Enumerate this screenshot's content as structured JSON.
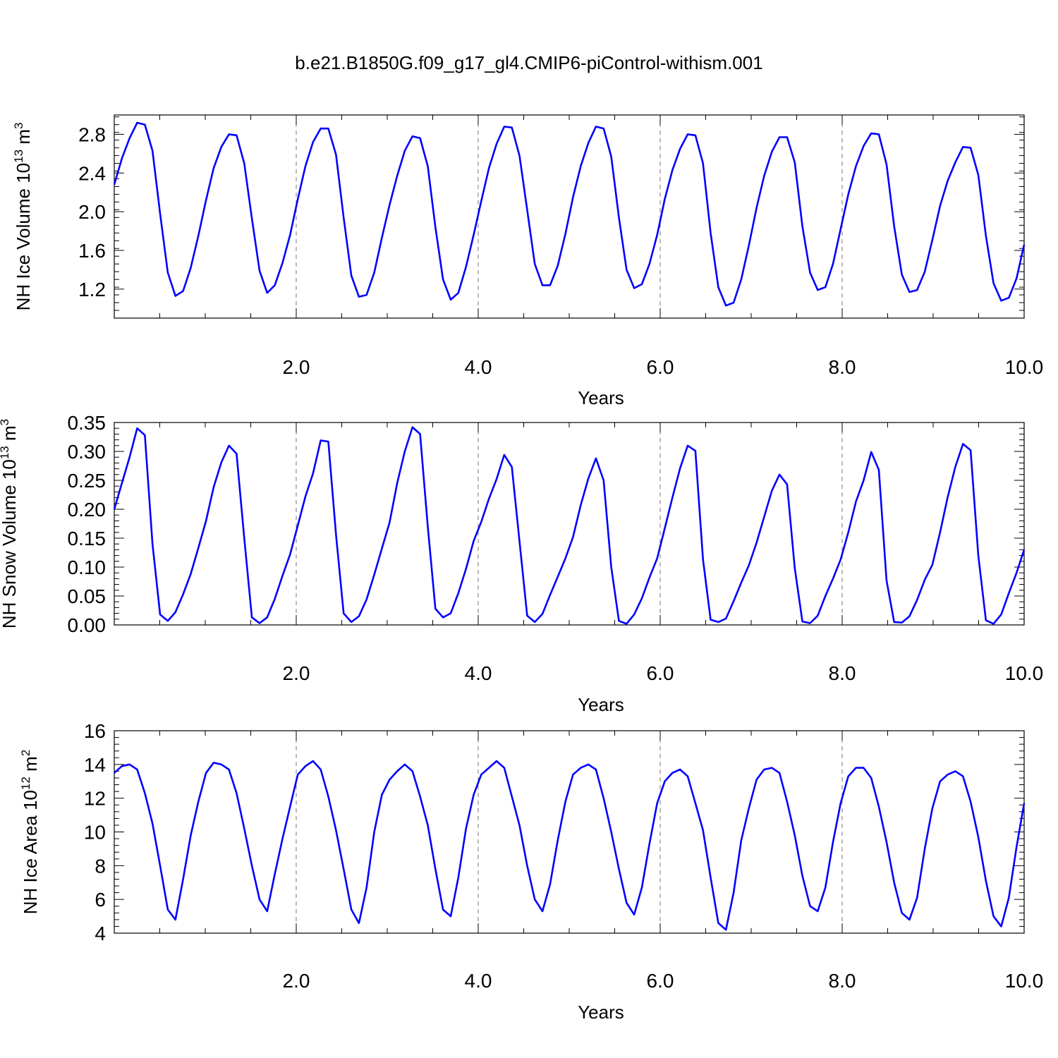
{
  "title": "b.e21.B1850G.f09_g17_gl4.CMIP6-piControl-withism.001",
  "colors": {
    "series": "#0000ff",
    "grid": "#777777",
    "frame": "#000000"
  },
  "chart_data": [
    {
      "type": "line",
      "xlabel": "Years",
      "ylabel": "NH Ice Volume 10",
      "ylabel_exp": "13",
      "ylabel_unit": " m",
      "ylabel_unit_exp": "3",
      "xlim": [
        0.0,
        10.0
      ],
      "ylim": [
        0.9,
        3.0
      ],
      "x_ticks": [
        "2.0",
        "4.0",
        "6.0",
        "8.0",
        "10.0"
      ],
      "y_ticks": [
        "1.2",
        "1.6",
        "2.0",
        "2.4",
        "2.8"
      ],
      "grid": "dashed vertical at x ticks",
      "series": [
        {
          "values": [
            2.28,
            2.55,
            2.76,
            2.92,
            2.9,
            2.63,
            1.98,
            1.37,
            1.13,
            1.18,
            1.42,
            1.75,
            2.12,
            2.45,
            2.67,
            2.8,
            2.79,
            2.5,
            1.93,
            1.39,
            1.16,
            1.24,
            1.47,
            1.76,
            2.13,
            2.47,
            2.72,
            2.86,
            2.86,
            2.59,
            1.94,
            1.34,
            1.12,
            1.14,
            1.37,
            1.73,
            2.07,
            2.37,
            2.63,
            2.78,
            2.76,
            2.47,
            1.84,
            1.3,
            1.09,
            1.16,
            1.43,
            1.76,
            2.11,
            2.45,
            2.7,
            2.88,
            2.87,
            2.58,
            2.02,
            1.46,
            1.24,
            1.24,
            1.44,
            1.77,
            2.15,
            2.47,
            2.71,
            2.88,
            2.86,
            2.57,
            1.94,
            1.4,
            1.21,
            1.25,
            1.46,
            1.76,
            2.13,
            2.43,
            2.65,
            2.8,
            2.79,
            2.5,
            1.78,
            1.22,
            1.03,
            1.06,
            1.3,
            1.65,
            2.04,
            2.37,
            2.62,
            2.77,
            2.77,
            2.51,
            1.85,
            1.37,
            1.19,
            1.22,
            1.46,
            1.82,
            2.18,
            2.47,
            2.68,
            2.81,
            2.8,
            2.49,
            1.85,
            1.35,
            1.17,
            1.19,
            1.38,
            1.71,
            2.06,
            2.32,
            2.51,
            2.67,
            2.66,
            2.38,
            1.75,
            1.26,
            1.08,
            1.11,
            1.31,
            1.66
          ]
        }
      ]
    },
    {
      "type": "line",
      "xlabel": "Years",
      "ylabel": "NH Snow Volume 10",
      "ylabel_exp": "13",
      "ylabel_unit": " m",
      "ylabel_unit_exp": "3",
      "xlim": [
        0.0,
        10.0
      ],
      "ylim": [
        0.0,
        0.35
      ],
      "x_ticks": [
        "2.0",
        "4.0",
        "6.0",
        "8.0",
        "10.0"
      ],
      "y_ticks": [
        "0.00",
        "0.05",
        "0.10",
        "0.15",
        "0.20",
        "0.25",
        "0.30",
        "0.35"
      ],
      "grid": "dashed vertical at x ticks",
      "series": [
        {
          "values": [
            0.2,
            0.245,
            0.29,
            0.34,
            0.328,
            0.14,
            0.018,
            0.007,
            0.022,
            0.053,
            0.088,
            0.133,
            0.18,
            0.238,
            0.281,
            0.31,
            0.296,
            0.15,
            0.013,
            0.003,
            0.013,
            0.045,
            0.085,
            0.122,
            0.172,
            0.222,
            0.262,
            0.319,
            0.317,
            0.156,
            0.02,
            0.005,
            0.015,
            0.044,
            0.087,
            0.132,
            0.177,
            0.245,
            0.3,
            0.342,
            0.33,
            0.17,
            0.028,
            0.013,
            0.02,
            0.055,
            0.097,
            0.145,
            0.178,
            0.218,
            0.252,
            0.294,
            0.273,
            0.145,
            0.016,
            0.005,
            0.019,
            0.052,
            0.083,
            0.115,
            0.152,
            0.207,
            0.253,
            0.288,
            0.25,
            0.1,
            0.007,
            0.002,
            0.018,
            0.046,
            0.082,
            0.115,
            0.167,
            0.22,
            0.271,
            0.31,
            0.301,
            0.113,
            0.009,
            0.005,
            0.011,
            0.041,
            0.073,
            0.103,
            0.142,
            0.187,
            0.232,
            0.26,
            0.243,
            0.098,
            0.006,
            0.003,
            0.016,
            0.05,
            0.08,
            0.113,
            0.16,
            0.213,
            0.25,
            0.299,
            0.268,
            0.077,
            0.005,
            0.004,
            0.015,
            0.043,
            0.078,
            0.104,
            0.16,
            0.221,
            0.273,
            0.313,
            0.302,
            0.12,
            0.008,
            0.002,
            0.018,
            0.055,
            0.09,
            0.13
          ]
        }
      ]
    },
    {
      "type": "line",
      "xlabel": "Years",
      "ylabel": "NH Ice Area 10",
      "ylabel_exp": "12",
      "ylabel_unit": " m",
      "ylabel_unit_exp": "2",
      "xlim": [
        0.0,
        10.0
      ],
      "ylim": [
        4,
        16
      ],
      "x_ticks": [
        "2.0",
        "4.0",
        "6.0",
        "8.0",
        "10.0"
      ],
      "y_ticks": [
        "4",
        "6",
        "8",
        "10",
        "12",
        "14",
        "16"
      ],
      "grid": "dashed vertical at x ticks",
      "series": [
        {
          "values": [
            13.5,
            13.9,
            14.0,
            13.7,
            12.3,
            10.5,
            8.0,
            5.4,
            4.8,
            7.2,
            9.8,
            11.8,
            13.5,
            14.1,
            14.0,
            13.7,
            12.3,
            10.2,
            8.0,
            6.0,
            5.3,
            7.5,
            9.6,
            11.5,
            13.4,
            13.9,
            14.2,
            13.7,
            12.1,
            10.1,
            7.8,
            5.4,
            4.6,
            6.7,
            10.0,
            12.2,
            13.1,
            13.6,
            14.0,
            13.6,
            12.1,
            10.4,
            7.8,
            5.4,
            5.0,
            7.3,
            10.2,
            12.2,
            13.4,
            13.8,
            14.2,
            13.8,
            12.1,
            10.4,
            8.0,
            6.0,
            5.3,
            6.9,
            9.5,
            11.8,
            13.4,
            13.8,
            14.0,
            13.7,
            12.0,
            10.0,
            7.8,
            5.8,
            5.1,
            6.7,
            9.3,
            11.7,
            13.0,
            13.5,
            13.7,
            13.3,
            11.7,
            10.1,
            7.3,
            4.6,
            4.2,
            6.4,
            9.5,
            11.4,
            13.1,
            13.7,
            13.8,
            13.5,
            11.8,
            9.8,
            7.4,
            5.6,
            5.3,
            6.7,
            9.4,
            11.7,
            13.3,
            13.8,
            13.8,
            13.2,
            11.5,
            9.4,
            7.0,
            5.2,
            4.8,
            6.1,
            9.0,
            11.4,
            13.0,
            13.4,
            13.6,
            13.3,
            11.8,
            9.7,
            7.1,
            5.0,
            4.4,
            6.1,
            9.1,
            11.7
          ]
        }
      ]
    }
  ]
}
